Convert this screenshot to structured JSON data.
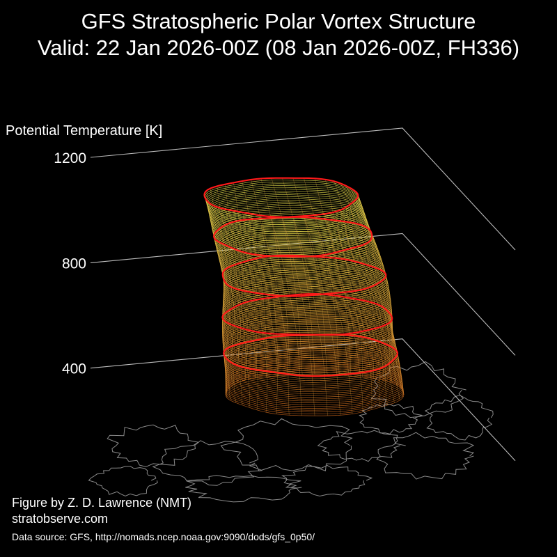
{
  "header": {
    "title_line1": "GFS Stratospheric Polar Vortex Structure",
    "title_line2": "Valid: 22 Jan 2026-00Z  (08 Jan 2026-00Z, FH336)"
  },
  "chart_data": {
    "type": "3d-isosurface",
    "zlabel": "Potential Temperature [K]",
    "z_ticks": [
      400,
      800,
      1200
    ],
    "zlim": [
      0,
      1200
    ],
    "highlight_levels_K": [
      450,
      600,
      750,
      900,
      1050
    ],
    "vortex_top_K": 1050,
    "vortex_bottom_K": 300,
    "colors": {
      "background": "#000000",
      "text": "#ffffff",
      "axis": "#bbbbbb",
      "coastline": "#8a8a8a",
      "highlight_contour": "#ff1a1a",
      "isosurface_low": "#c8641a",
      "isosurface_high": "#e6e650"
    }
  },
  "footer": {
    "credit_line1": "Figure by Z. D. Lawrence (NMT)",
    "credit_line2": "stratobserve.com",
    "source": "Data source: GFS, http://nomads.ncep.noaa.gov:9090/dods/gfs_0p50/"
  }
}
